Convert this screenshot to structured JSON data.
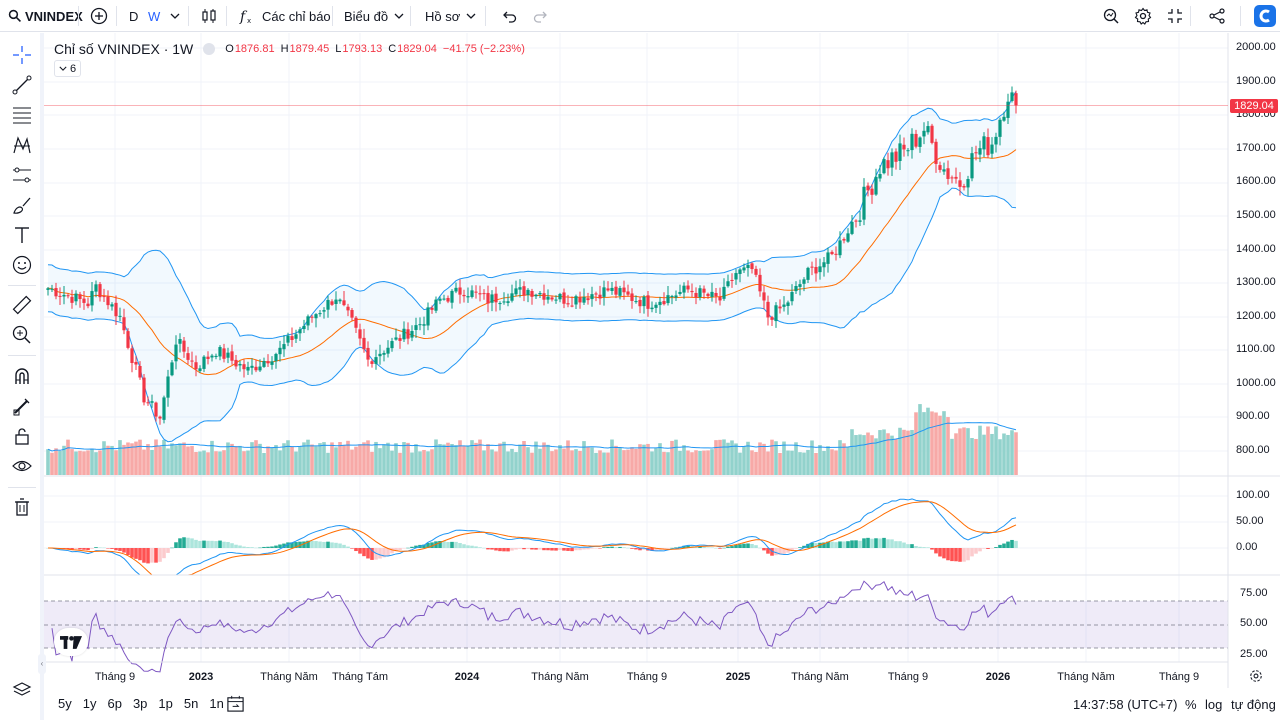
{
  "symbol": "VNINDEX",
  "toolbar": {
    "interval_d": "D",
    "interval_w": "W",
    "indicators": "Các chỉ báo",
    "chart": "Biểu đồ",
    "profile": "Hồ sơ"
  },
  "legend": {
    "title": "Chỉ số VNINDEX · 1W",
    "o_label": "O",
    "o": "1876.81",
    "h_label": "H",
    "h": "1879.45",
    "l_label": "L",
    "l": "1793.13",
    "c_label": "C",
    "c": "1829.04",
    "change": "−41.75 (−2.23%)",
    "collapse_count": "6"
  },
  "price_axis": [
    "2000.00",
    "1900.00",
    "1800.00",
    "1700.00",
    "1600.00",
    "1500.00",
    "1400.00",
    "1300.00",
    "1200.00",
    "1100.00",
    "1000.00",
    "900.00",
    "800.00"
  ],
  "price_tag": "1829.04",
  "macd_axis": [
    "100.00",
    "50.00",
    "0.00"
  ],
  "rsi_axis": [
    "75.00",
    "50.00",
    "25.00"
  ],
  "time_axis": [
    {
      "label": "Tháng 9",
      "bold": false
    },
    {
      "label": "2023",
      "bold": true
    },
    {
      "label": "Tháng Năm",
      "bold": false
    },
    {
      "label": "Tháng Tám",
      "bold": false
    },
    {
      "label": "2024",
      "bold": true
    },
    {
      "label": "Tháng Năm",
      "bold": false
    },
    {
      "label": "Tháng 9",
      "bold": false
    },
    {
      "label": "2025",
      "bold": true
    },
    {
      "label": "Tháng Năm",
      "bold": false
    },
    {
      "label": "Tháng 9",
      "bold": false
    },
    {
      "label": "2026",
      "bold": true
    },
    {
      "label": "Tháng Năm",
      "bold": false
    },
    {
      "label": "Tháng 9",
      "bold": false
    }
  ],
  "ranges": [
    "5y",
    "1y",
    "6p",
    "3p",
    "1p",
    "5n",
    "1n"
  ],
  "clock": "14:37:58 (UTC+7)",
  "scale": {
    "percent": "%",
    "log": "log",
    "auto": "tự động"
  },
  "colors": {
    "up": "#089981",
    "down": "#f23645",
    "bb": "#2196f3",
    "ma": "#ff6d00",
    "rsi": "#7e57c2"
  },
  "chart_data": {
    "type": "candlestick",
    "title": "Chỉ số VNINDEX · 1W",
    "ylim": [
      750,
      2000
    ],
    "weekly_closes_anchor": [
      {
        "date": "2022-08",
        "close": 1280
      },
      {
        "date": "2022-11",
        "close": 960
      },
      {
        "date": "2023-01",
        "close": 1100
      },
      {
        "date": "2023-08",
        "close": 1240
      },
      {
        "date": "2023-11",
        "close": 1050
      },
      {
        "date": "2024-04",
        "close": 1260
      },
      {
        "date": "2024-08",
        "close": 1240
      },
      {
        "date": "2025-01",
        "close": 1260
      },
      {
        "date": "2025-03",
        "close": 1320
      },
      {
        "date": "2025-04",
        "close": 1170
      },
      {
        "date": "2025-08",
        "close": 1620
      },
      {
        "date": "2025-10",
        "close": 1730
      },
      {
        "date": "2025-11",
        "close": 1620
      },
      {
        "date": "2026-01",
        "close": 1870
      },
      {
        "date": "2026-01-last",
        "close": 1829.04
      }
    ],
    "indicators": [
      "Bollinger Bands",
      "MA",
      "Volume",
      "MACD",
      "RSI"
    ]
  }
}
